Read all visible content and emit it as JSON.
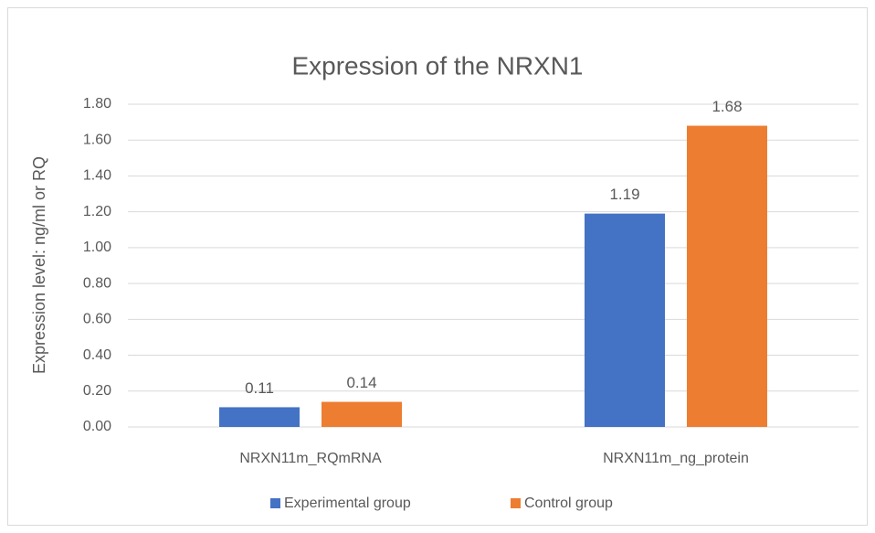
{
  "chart_data": {
    "type": "bar",
    "title": "Expression of the NRXN1",
    "y_label": "Expression level: ng/ml or RQ",
    "categories": [
      "NRXN11m_RQmRNA",
      "NRXN11m_ng_protein"
    ],
    "series": [
      {
        "name": "Experimental group",
        "color": "#4472c4",
        "values": [
          0.11,
          1.19
        ]
      },
      {
        "name": "Control group",
        "color": "#ed7d31",
        "values": [
          0.14,
          1.68
        ]
      }
    ],
    "ylim": [
      0,
      1.8
    ],
    "yticks": [
      {
        "value": 0,
        "label": "0.00"
      },
      {
        "value": 0.2,
        "label": "0.20"
      },
      {
        "value": 0.4,
        "label": "0.40"
      },
      {
        "value": 0.6,
        "label": "0.60"
      },
      {
        "value": 0.8,
        "label": "0.80"
      },
      {
        "value": 1.0,
        "label": "1.00"
      },
      {
        "value": 1.2,
        "label": "1.20"
      },
      {
        "value": 1.4,
        "label": "1.40"
      },
      {
        "value": 1.6,
        "label": "1.60"
      },
      {
        "value": 1.8,
        "label": "1.80"
      }
    ],
    "grid": true,
    "legend": "bottom"
  }
}
